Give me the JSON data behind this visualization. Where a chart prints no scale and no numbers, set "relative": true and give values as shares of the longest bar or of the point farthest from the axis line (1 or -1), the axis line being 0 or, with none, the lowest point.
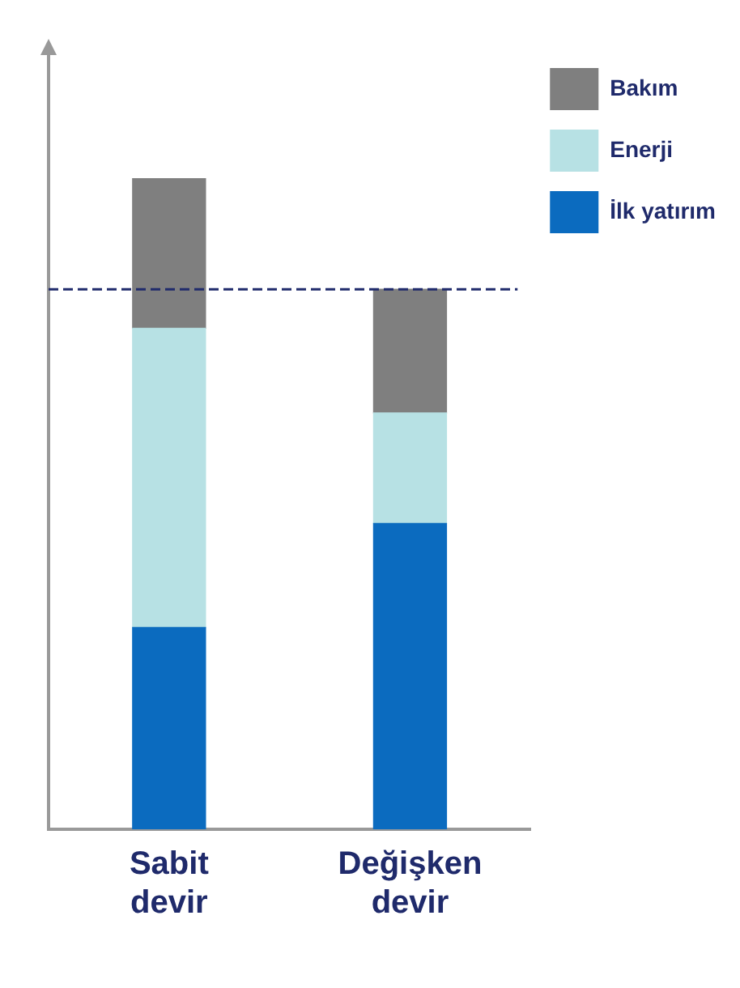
{
  "chart_data": {
    "type": "bar",
    "stacked": true,
    "relative": true,
    "categories": [
      "Sabit devir",
      "Değişken devir"
    ],
    "series": [
      {
        "name": "İlk yatırım",
        "color": "#0b6bbf",
        "values": [
          0.31,
          0.47
        ]
      },
      {
        "name": "Enerji",
        "color": "#b7e1e4",
        "values": [
          0.46,
          0.17
        ]
      },
      {
        "name": "Bakım",
        "color": "#7f7f7f",
        "values": [
          0.23,
          0.19
        ]
      }
    ],
    "ref_lines": [
      {
        "axis": "y",
        "value": 0.83,
        "color": "#1f2a6b",
        "line_style": "dashed"
      }
    ],
    "legend": "top right",
    "grid": false
  }
}
